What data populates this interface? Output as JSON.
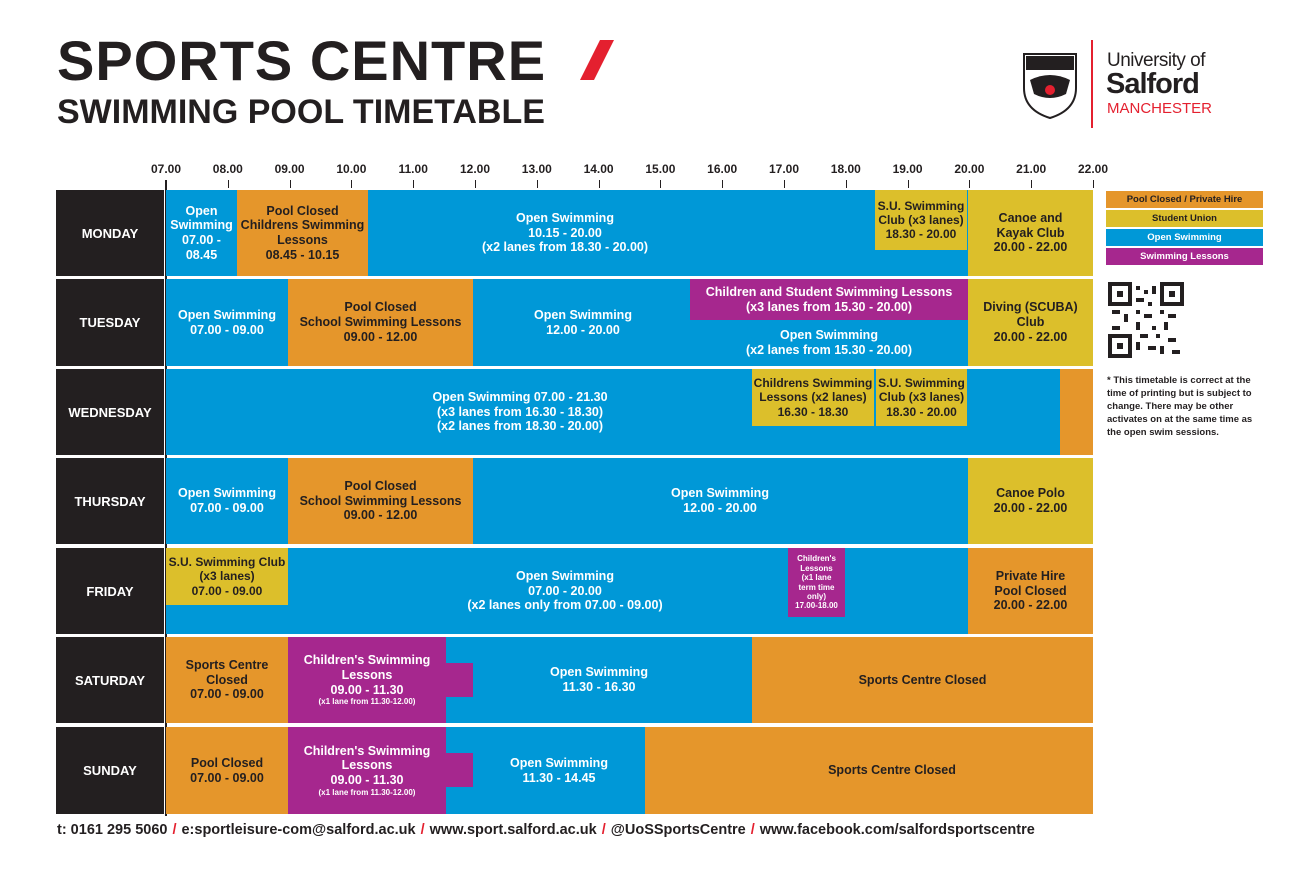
{
  "header": {
    "title": "SPORTS CENTRE",
    "subtitle": "SWIMMING POOL TIMETABLE"
  },
  "logo": {
    "line1": "University of",
    "line2": "Salford",
    "line3": "MANCHESTER"
  },
  "times": [
    "07.00",
    "08.00",
    "09.00",
    "10.00",
    "11.00",
    "12.00",
    "13.00",
    "14.00",
    "15.00",
    "16.00",
    "17.00",
    "18.00",
    "19.00",
    "20.00",
    "21.00",
    "22.00"
  ],
  "days": [
    {
      "name": "MONDAY",
      "blocks": [
        {
          "lines": [
            "Open",
            "Swimming",
            "07.00 -",
            "08.45"
          ]
        },
        {
          "lines": [
            "Pool Closed",
            "Childrens Swimming",
            "Lessons",
            "08.45 - 10.15"
          ]
        },
        {
          "lines": [
            "Open Swimming",
            "10.15 - 20.00",
            "(x2 lanes from 18.30 - 20.00)"
          ]
        },
        {
          "lines": [
            "S.U. Swimming",
            "Club (x3 lanes)",
            "18.30 - 20.00"
          ]
        },
        {
          "lines": [
            "Canoe and",
            "Kayak Club",
            "20.00 - 22.00"
          ]
        }
      ]
    },
    {
      "name": "TUESDAY",
      "blocks": [
        {
          "lines": [
            "Open Swimming",
            "07.00 - 09.00"
          ]
        },
        {
          "lines": [
            "Pool Closed",
            "School Swimming Lessons",
            "09.00 - 12.00"
          ]
        },
        {
          "lines": [
            "Open Swimming",
            "12.00 - 20.00"
          ]
        },
        {
          "lines": [
            "Children and Student Swimming Lessons",
            "(x3 lanes from 15.30 - 20.00)"
          ]
        },
        {
          "lines": [
            "Open Swimming",
            "(x2 lanes from 15.30 - 20.00)"
          ]
        },
        {
          "lines": [
            "Diving (SCUBA)",
            "Club",
            "20.00 - 22.00"
          ]
        }
      ]
    },
    {
      "name": "WEDNESDAY",
      "blocks": [
        {
          "lines": [
            "Open Swimming  07.00 - 21.30",
            "(x3 lanes from 16.30 - 18.30)",
            "(x2 lanes from 18.30 - 20.00)"
          ]
        },
        {
          "lines": [
            "Childrens Swimming",
            "Lessons (x2 lanes)",
            "16.30 - 18.30"
          ]
        },
        {
          "lines": [
            "S.U. Swimming",
            "Club (x3 lanes)",
            "18.30 - 20.00"
          ]
        }
      ]
    },
    {
      "name": "THURSDAY",
      "blocks": [
        {
          "lines": [
            "Open Swimming",
            "07.00 - 09.00"
          ]
        },
        {
          "lines": [
            "Pool Closed",
            "School Swimming Lessons",
            "09.00 - 12.00"
          ]
        },
        {
          "lines": [
            "Open Swimming",
            "12.00 - 20.00"
          ]
        },
        {
          "lines": [
            "Canoe Polo",
            "20.00 - 22.00"
          ]
        }
      ]
    },
    {
      "name": "FRIDAY",
      "blocks": [
        {
          "lines": [
            "Open Swimming",
            "07.00 - 20.00",
            "(x2 lanes only from 07.00 - 09.00)"
          ]
        },
        {
          "lines": [
            "S.U. Swimming Club",
            "(x3 lanes)",
            "07.00 - 09.00"
          ]
        },
        {
          "lines": [
            "Children's",
            "Lessons",
            "(x1 lane",
            "term time",
            "only)",
            "17.00-18.00"
          ]
        },
        {
          "lines": [
            "Private Hire",
            "Pool Closed",
            "20.00 - 22.00"
          ]
        }
      ]
    },
    {
      "name": "SATURDAY",
      "blocks": [
        {
          "lines": [
            "Sports Centre",
            "Closed",
            "07.00 - 09.00"
          ]
        },
        {
          "lines": [
            "Children's Swimming",
            "Lessons",
            "09.00 - 11.30",
            "(x1 lane from 11.30-12.00)"
          ]
        },
        {
          "lines": [
            "Open Swimming",
            "11.30 - 16.30"
          ]
        },
        {
          "lines": [
            "Sports Centre Closed"
          ]
        }
      ]
    },
    {
      "name": "SUNDAY",
      "blocks": [
        {
          "lines": [
            "Pool Closed",
            "07.00 - 09.00"
          ]
        },
        {
          "lines": [
            "Children's Swimming",
            "Lessons",
            "09.00 - 11.30",
            "(x1 lane from 11.30-12.00)"
          ]
        },
        {
          "lines": [
            "Open Swimming",
            "11.30 - 14.45"
          ]
        },
        {
          "lines": [
            "Sports Centre Closed"
          ]
        }
      ]
    }
  ],
  "legend": [
    "Pool Closed / Private Hire",
    "Student Union",
    "Open Swimming",
    "Swimming Lessons"
  ],
  "note": "* This timetable is correct at the time of printing but is subject to change. There may be other activates on at the same time as the open swim sessions.",
  "footer": {
    "items": [
      "t: 0161 295 5060",
      "e:sportleisure-com@salford.ac.uk",
      "www.sport.salford.ac.uk",
      "@UoSSportsCentre",
      "www.facebook.com/salfordsportscentre"
    ],
    "separator": "/"
  }
}
